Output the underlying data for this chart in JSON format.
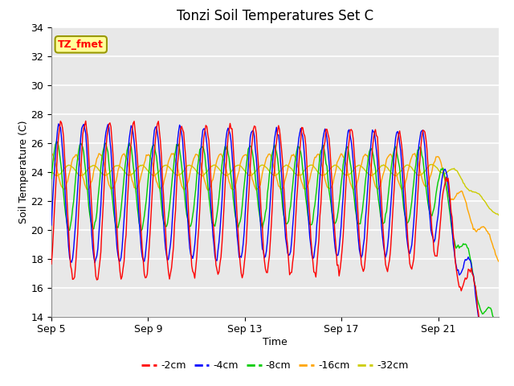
{
  "title": "Tonzi Soil Temperatures Set C",
  "xlabel": "Time",
  "ylabel": "Soil Temperature (C)",
  "ylim": [
    14,
    34
  ],
  "xlim": [
    0,
    18.5
  ],
  "xtick_positions": [
    0,
    4,
    8,
    12,
    16
  ],
  "xtick_labels": [
    "Sep 5",
    "Sep 9",
    "Sep 13",
    "Sep 17",
    "Sep 21"
  ],
  "ytick_positions": [
    14,
    16,
    18,
    20,
    22,
    24,
    26,
    28,
    30,
    32,
    34
  ],
  "colors": {
    "-2cm": "#FF0000",
    "-4cm": "#0000FF",
    "-8cm": "#00CC00",
    "-16cm": "#FFA500",
    "-32cm": "#CCCC00"
  },
  "bg_color": "#E8E8E8",
  "annotation_text": "TZ_fmet",
  "annotation_bg": "#FFFF99",
  "annotation_border": "#999900"
}
